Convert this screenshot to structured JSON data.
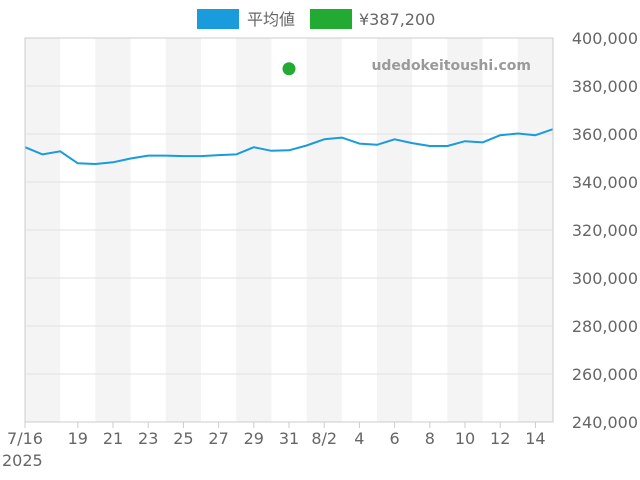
{
  "chart_data": {
    "type": "line",
    "watermark": "udedokeitoushi.com",
    "colors": {
      "line": "#1a9bdc",
      "point": "#22aa33",
      "band": "#f4f4f4",
      "grid": "#e2e2e2",
      "axis": "#cccccc"
    },
    "legend": {
      "position": "top",
      "items": [
        {
          "label": "平均値",
          "color": "#1a9bdc"
        },
        {
          "label": "¥387,200",
          "color": "#22aa33"
        }
      ]
    },
    "yaxis": {
      "position": "right",
      "min": 240000,
      "max": 400000,
      "ticks": [
        "240,000",
        "260,000",
        "280,000",
        "300,000",
        "320,000",
        "340,000",
        "360,000",
        "380,000",
        "400,000"
      ]
    },
    "xaxis": {
      "start_date": "2025-07-16",
      "end_date": "2025-08-15",
      "ticks": [
        {
          "label": "7/16",
          "sub": "2025",
          "date": "2025-07-16"
        },
        {
          "label": "19",
          "date": "2025-07-19"
        },
        {
          "label": "21",
          "date": "2025-07-21"
        },
        {
          "label": "23",
          "date": "2025-07-23"
        },
        {
          "label": "25",
          "date": "2025-07-25"
        },
        {
          "label": "27",
          "date": "2025-07-27"
        },
        {
          "label": "29",
          "date": "2025-07-29"
        },
        {
          "label": "31",
          "date": "2025-07-31"
        },
        {
          "label": "8/2",
          "date": "2025-08-02"
        },
        {
          "label": "4",
          "date": "2025-08-04"
        },
        {
          "label": "6",
          "date": "2025-08-06"
        },
        {
          "label": "8",
          "date": "2025-08-08"
        },
        {
          "label": "10",
          "date": "2025-08-10"
        },
        {
          "label": "12",
          "date": "2025-08-12"
        },
        {
          "label": "14",
          "date": "2025-08-14"
        }
      ],
      "bands": [
        [
          "2025-07-16",
          "2025-07-18"
        ],
        [
          "2025-07-20",
          "2025-07-22"
        ],
        [
          "2025-07-24",
          "2025-07-26"
        ],
        [
          "2025-07-28",
          "2025-07-30"
        ],
        [
          "2025-08-01",
          "2025-08-03"
        ],
        [
          "2025-08-05",
          "2025-08-07"
        ],
        [
          "2025-08-09",
          "2025-08-11"
        ],
        [
          "2025-08-13",
          "2025-08-15"
        ]
      ]
    },
    "series": [
      {
        "name": "平均値",
        "x": [
          "2025-07-16",
          "2025-07-17",
          "2025-07-18",
          "2025-07-19",
          "2025-07-20",
          "2025-07-21",
          "2025-07-22",
          "2025-07-23",
          "2025-07-24",
          "2025-07-25",
          "2025-07-26",
          "2025-07-27",
          "2025-07-28",
          "2025-07-29",
          "2025-07-30",
          "2025-07-31",
          "2025-08-01",
          "2025-08-02",
          "2025-08-03",
          "2025-08-04",
          "2025-08-05",
          "2025-08-06",
          "2025-08-07",
          "2025-08-08",
          "2025-08-09",
          "2025-08-10",
          "2025-08-11",
          "2025-08-12",
          "2025-08-13",
          "2025-08-14",
          "2025-08-15"
        ],
        "values": [
          354500,
          351500,
          352800,
          347800,
          347500,
          348200,
          349800,
          351000,
          351000,
          350800,
          350800,
          351200,
          351500,
          354500,
          353000,
          353200,
          355200,
          357800,
          358500,
          356000,
          355500,
          357800,
          356200,
          355000,
          355000,
          357000,
          356500,
          359500,
          360200,
          359500,
          362000
        ]
      },
      {
        "name": "¥387,200",
        "type": "scatter",
        "x": [
          "2025-07-31"
        ],
        "values": [
          387200
        ]
      }
    ]
  }
}
